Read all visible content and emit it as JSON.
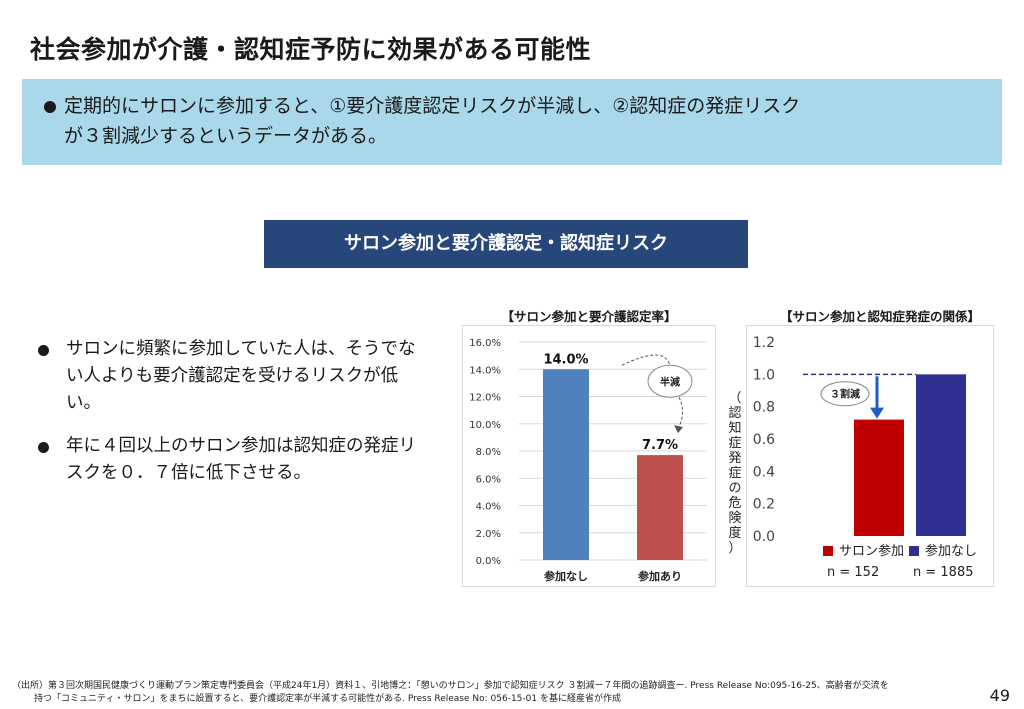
{
  "header": {
    "title": "社会参加が介護・認知症予防に効果がある可能性"
  },
  "banner": {
    "text_line1": "定期的にサロンに参加すると、①要介護度認定リスクが半減し、②認知症の発症リスク",
    "text_line2": "が３割減少するというデータがある。"
  },
  "section": {
    "title": "サロン参加と要介護認定・認知症リスク"
  },
  "bullets": [
    {
      "text": "サロンに頻繁に参加していた人は、そうでない人よりも要介護認定を受けるリスクが低い。"
    },
    {
      "text": "年に４回以上のサロン参加は認知症の発症リスクを０．７倍に低下させる。"
    }
  ],
  "chart_data": [
    {
      "type": "bar",
      "title": "【サロン参加と要介護認定率】",
      "categories": [
        "参加なし",
        "参加あり"
      ],
      "values": [
        14.0,
        7.7
      ],
      "value_labels": [
        "14.0%",
        "7.7%"
      ],
      "yticks": [
        "0.0%",
        "2.0%",
        "4.0%",
        "6.0%",
        "8.0%",
        "10.0%",
        "12.0%",
        "14.0%",
        "16.0%"
      ],
      "ylim": [
        0,
        16
      ],
      "colors": [
        "#4f81bd",
        "#c0504d"
      ],
      "annotation": "半減"
    },
    {
      "type": "bar",
      "title": "【サロン参加と認知症発症の関係】",
      "ylabel": "（認知症発症の危険度）",
      "categories": [
        "サロン参加",
        "参加なし"
      ],
      "values": [
        0.72,
        1.0
      ],
      "yticks": [
        "0.0",
        "0.2",
        "0.4",
        "0.6",
        "0.8",
        "1.0",
        "1.2"
      ],
      "ylim": [
        0,
        1.2
      ],
      "colors": [
        "#c00000",
        "#2e3192"
      ],
      "legend": [
        "サロン参加",
        "参加なし"
      ],
      "n_labels": [
        "n = 152",
        "n = 1885"
      ],
      "annotation": "３割減"
    }
  ],
  "footer": {
    "line1": "（出所）第３回次期国民健康づくり運動プラン策定専門委員会（平成24年1月）資料１、引地博之：「憩いのサロン」参加で認知症リスク ３割減ー７年間の追跡調査ー. Press Release No:095-16-25、高齢者が交流を",
    "line2": "持つ「コミュニティ・サロン」をまちに設置すると、要介護認定率が半減する可能性がある. Press Release No: 056-15-01 を基に経産省が作成"
  },
  "page_number": "49"
}
